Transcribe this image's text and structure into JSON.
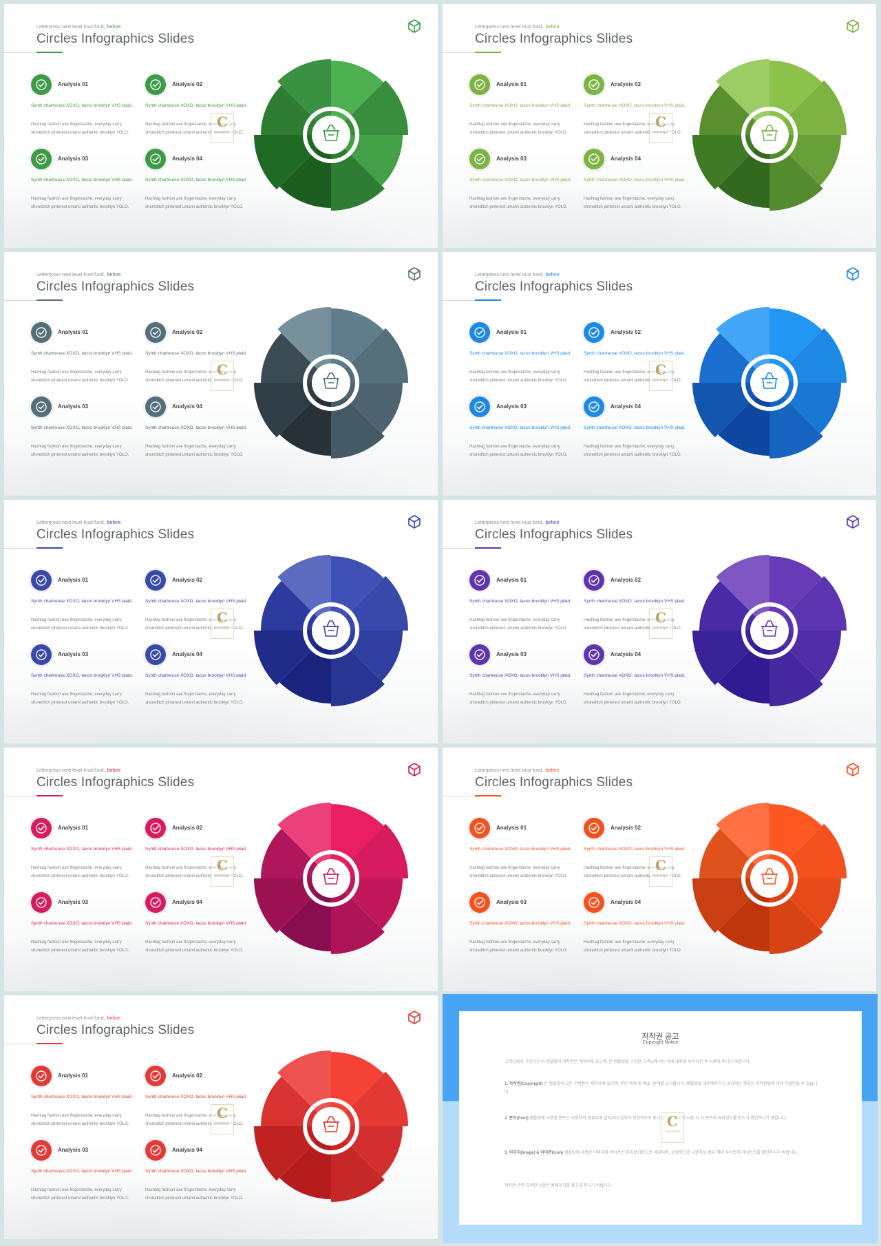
{
  "slides": [
    {
      "theme": "green",
      "supertitle": "Letterpress next level trust fund,",
      "supertitle_highlight": "before",
      "title": "Circles Infographics Slides",
      "accent": "#3d9b45",
      "wheel_colors": [
        "#4caf50",
        "#388e3c",
        "#43a047",
        "#2e7d32",
        "#1b5e20",
        "#1f6b25",
        "#2e7d32",
        "#3b9142"
      ],
      "icon": "box-cube-icon",
      "items": [
        {
          "label": "Analysis 01",
          "accent_text": "Synth chartreuse XOXO, tacos brooklyn VHS plaid.",
          "body_text": "Hashtag fashion axe fingerstache, everyday carry shoreditch pinterest umami authentic brooklyn YOLO."
        },
        {
          "label": "Analysis 02",
          "accent_text": "Synth chartreuse XOXO, tacos brooklyn VHS plaid.",
          "body_text": "Hashtag fashion axe fingerstache, everyday carry shoreditch pinterest umami authentic brooklyn YOLO."
        },
        {
          "label": "Analysis 03",
          "accent_text": "Synth chartreuse XOXO, tacos brooklyn VHS plaid.",
          "body_text": "Hashtag fashion axe fingerstache, everyday carry shoreditch pinterest umami authentic brooklyn YOLO."
        },
        {
          "label": "Analysis 04",
          "accent_text": "Synth chartreuse XOXO, tacos brooklyn VHS plaid.",
          "body_text": "Hashtag fashion axe fingerstache, everyday carry shoreditch pinterest umami authentic brooklyn YOLO."
        }
      ]
    },
    {
      "theme": "lime",
      "supertitle": "Letterpress next level trust fund,",
      "supertitle_highlight": "before",
      "title": "Circles Infographics Slides",
      "accent": "#7cb342",
      "wheel_colors": [
        "#8bc34a",
        "#7cb342",
        "#689f38",
        "#558b2f",
        "#33691e",
        "#3f7a24",
        "#5a8f30",
        "#9ccc65"
      ],
      "icon": "box-cube-icon",
      "items": [
        {
          "label": "Analysis 01",
          "accent_text": "Synth chartreuse XOXO, tacos brooklyn VHS plaid.",
          "body_text": "Hashtag fashion axe fingerstache, everyday carry shoreditch pinterest umami authentic brooklyn YOLO."
        },
        {
          "label": "Analysis 02",
          "accent_text": "Synth chartreuse XOXO, tacos brooklyn VHS plaid.",
          "body_text": "Hashtag fashion axe fingerstache, everyday carry shoreditch pinterest umami authentic brooklyn YOLO."
        },
        {
          "label": "Analysis 03",
          "accent_text": "Synth chartreuse XOXO, tacos brooklyn VHS plaid.",
          "body_text": "Hashtag fashion axe fingerstache, everyday carry shoreditch pinterest umami authentic brooklyn YOLO."
        },
        {
          "label": "Analysis 04",
          "accent_text": "Synth chartreuse XOXO, tacos brooklyn VHS plaid.",
          "body_text": "Hashtag fashion axe fingerstache, everyday carry shoreditch pinterest umami authentic brooklyn YOLO."
        }
      ]
    },
    {
      "theme": "slate",
      "supertitle": "Letterpress next level trust fund,",
      "supertitle_highlight": "before",
      "title": "Circles Infographics Slides",
      "accent": "#546e7a",
      "wheel_colors": [
        "#607d8b",
        "#546e7a",
        "#4f6470",
        "#455a64",
        "#263238",
        "#2f3e46",
        "#3a4b54",
        "#78909c"
      ],
      "icon": "box-cube-icon",
      "items": [
        {
          "label": "Analysis 01",
          "accent_text": "Synth chartreuse XOXO, tacos brooklyn VHS plaid.",
          "body_text": "Hashtag fashion axe fingerstache, everyday carry shoreditch pinterest umami authentic brooklyn YOLO."
        },
        {
          "label": "Analysis 02",
          "accent_text": "Synth chartreuse XOXO, tacos brooklyn VHS plaid.",
          "body_text": "Hashtag fashion axe fingerstache, everyday carry shoreditch pinterest umami authentic brooklyn YOLO."
        },
        {
          "label": "Analysis 03",
          "accent_text": "Synth chartreuse XOXO, tacos brooklyn VHS plaid.",
          "body_text": "Hashtag fashion axe fingerstache, everyday carry shoreditch pinterest umami authentic brooklyn YOLO."
        },
        {
          "label": "Analysis 04",
          "accent_text": "Synth chartreuse XOXO, tacos brooklyn VHS plaid.",
          "body_text": "Hashtag fashion axe fingerstache, everyday carry shoreditch pinterest umami authentic brooklyn YOLO."
        }
      ]
    },
    {
      "theme": "blue",
      "supertitle": "Letterpress next level trust fund,",
      "supertitle_highlight": "before",
      "title": "Circles Infographics Slides",
      "accent": "#1e88e5",
      "wheel_colors": [
        "#2196f3",
        "#1e88e5",
        "#1976d2",
        "#1565c0",
        "#0d47a1",
        "#1256b0",
        "#1a6fd0",
        "#42a5f5"
      ],
      "icon": "box-cube-icon",
      "items": [
        {
          "label": "Analysis 01",
          "accent_text": "Synth chartreuse XOXO, tacos brooklyn VHS plaid.",
          "body_text": "Hashtag fashion axe fingerstache, everyday carry shoreditch pinterest umami authentic brooklyn YOLO."
        },
        {
          "label": "Analysis 02",
          "accent_text": "Synth chartreuse XOXO, tacos brooklyn VHS plaid.",
          "body_text": "Hashtag fashion axe fingerstache, everyday carry shoreditch pinterest umami authentic brooklyn YOLO."
        },
        {
          "label": "Analysis 03",
          "accent_text": "Synth chartreuse XOXO, tacos brooklyn VHS plaid.",
          "body_text": "Hashtag fashion axe fingerstache, everyday carry shoreditch pinterest umami authentic brooklyn YOLO."
        },
        {
          "label": "Analysis 04",
          "accent_text": "Synth chartreuse XOXO, tacos brooklyn VHS plaid.",
          "body_text": "Hashtag fashion axe fingerstache, everyday carry shoreditch pinterest umami authentic brooklyn YOLO."
        }
      ]
    },
    {
      "theme": "indigo",
      "supertitle": "Letterpress next level trust fund,",
      "supertitle_highlight": "before",
      "title": "Circles Infographics Slides",
      "accent": "#3949ab",
      "wheel_colors": [
        "#3f51b5",
        "#3949ab",
        "#303f9f",
        "#283593",
        "#1a237e",
        "#202b8a",
        "#2d3a9e",
        "#5c6bc0"
      ],
      "icon": "box-cube-icon",
      "items": [
        {
          "label": "Analysis 01",
          "accent_text": "Synth chartreuse XOXO, tacos brooklyn VHS plaid.",
          "body_text": "Hashtag fashion axe fingerstache, everyday carry shoreditch pinterest umami authentic brooklyn YOLO."
        },
        {
          "label": "Analysis 02",
          "accent_text": "Synth chartreuse XOXO, tacos brooklyn VHS plaid.",
          "body_text": "Hashtag fashion axe fingerstache, everyday carry shoreditch pinterest umami authentic brooklyn YOLO."
        },
        {
          "label": "Analysis 03",
          "accent_text": "Synth chartreuse XOXO, tacos brooklyn VHS plaid.",
          "body_text": "Hashtag fashion axe fingerstache, everyday carry shoreditch pinterest umami authentic brooklyn YOLO."
        },
        {
          "label": "Analysis 04",
          "accent_text": "Synth chartreuse XOXO, tacos brooklyn VHS plaid.",
          "body_text": "Hashtag fashion axe fingerstache, everyday carry shoreditch pinterest umami authentic brooklyn YOLO."
        }
      ]
    },
    {
      "theme": "purple",
      "supertitle": "Letterpress next level trust fund,",
      "supertitle_highlight": "before",
      "title": "Circles Infographics Slides",
      "accent": "#5e35b1",
      "wheel_colors": [
        "#673ab7",
        "#5e35b1",
        "#512da8",
        "#4527a0",
        "#311b92",
        "#3a2299",
        "#4a2ba5",
        "#7e57c2"
      ],
      "icon": "box-cube-icon",
      "items": [
        {
          "label": "Analysis 01",
          "accent_text": "Synth chartreuse XOXO, tacos brooklyn VHS plaid.",
          "body_text": "Hashtag fashion axe fingerstache, everyday carry shoreditch pinterest umami authentic brooklyn YOLO."
        },
        {
          "label": "Analysis 02",
          "accent_text": "Synth chartreuse XOXO, tacos brooklyn VHS plaid.",
          "body_text": "Hashtag fashion axe fingerstache, everyday carry shoreditch pinterest umami authentic brooklyn YOLO."
        },
        {
          "label": "Analysis 03",
          "accent_text": "Synth chartreuse XOXO, tacos brooklyn VHS plaid.",
          "body_text": "Hashtag fashion axe fingerstache, everyday carry shoreditch pinterest umami authentic brooklyn YOLO."
        },
        {
          "label": "Analysis 04",
          "accent_text": "Synth chartreuse XOXO, tacos brooklyn VHS plaid.",
          "body_text": "Hashtag fashion axe fingerstache, everyday carry shoreditch pinterest umami authentic brooklyn YOLO."
        }
      ]
    },
    {
      "theme": "pink",
      "supertitle": "Letterpress next level trust fund,",
      "supertitle_highlight": "before",
      "title": "Circles Infographics Slides",
      "accent": "#d81b60",
      "wheel_colors": [
        "#e91e63",
        "#d81b60",
        "#c2185b",
        "#ad1457",
        "#880e4f",
        "#9b1152",
        "#b0165b",
        "#ec407a"
      ],
      "icon": "box-cube-icon",
      "items": [
        {
          "label": "Analysis 01",
          "accent_text": "Synth chartreuse XOXO, tacos brooklyn VHS plaid.",
          "body_text": "Hashtag fashion axe fingerstache, everyday carry shoreditch pinterest umami authentic brooklyn YOLO."
        },
        {
          "label": "Analysis 02",
          "accent_text": "Synth chartreuse XOXO, tacos brooklyn VHS plaid.",
          "body_text": "Hashtag fashion axe fingerstache, everyday carry shoreditch pinterest umami authentic brooklyn YOLO."
        },
        {
          "label": "Analysis 03",
          "accent_text": "Synth chartreuse XOXO, tacos brooklyn VHS plaid.",
          "body_text": "Hashtag fashion axe fingerstache, everyday carry shoreditch pinterest umami authentic brooklyn YOLO."
        },
        {
          "label": "Analysis 04",
          "accent_text": "Synth chartreuse XOXO, tacos brooklyn VHS plaid.",
          "body_text": "Hashtag fashion axe fingerstache, everyday carry shoreditch pinterest umami authentic brooklyn YOLO."
        }
      ]
    },
    {
      "theme": "orange",
      "supertitle": "Letterpress next level trust fund,",
      "supertitle_highlight": "before",
      "title": "Circles Infographics Slides",
      "accent": "#f4511e",
      "wheel_colors": [
        "#ff5722",
        "#f4511e",
        "#e64a19",
        "#d84315",
        "#bf360c",
        "#c93e12",
        "#e0521c",
        "#ff7043"
      ],
      "icon": "box-cube-icon",
      "items": [
        {
          "label": "Analysis 01",
          "accent_text": "Synth chartreuse XOXO, tacos brooklyn VHS plaid.",
          "body_text": "Hashtag fashion axe fingerstache, everyday carry shoreditch pinterest umami authentic brooklyn YOLO."
        },
        {
          "label": "Analysis 02",
          "accent_text": "Synth chartreuse XOXO, tacos brooklyn VHS plaid.",
          "body_text": "Hashtag fashion axe fingerstache, everyday carry shoreditch pinterest umami authentic brooklyn YOLO."
        },
        {
          "label": "Analysis 03",
          "accent_text": "Synth chartreuse XOXO, tacos brooklyn VHS plaid.",
          "body_text": "Hashtag fashion axe fingerstache, everyday carry shoreditch pinterest umami authentic brooklyn YOLO."
        },
        {
          "label": "Analysis 04",
          "accent_text": "Synth chartreuse XOXO, tacos brooklyn VHS plaid.",
          "body_text": "Hashtag fashion axe fingerstache, everyday carry shoreditch pinterest umami authentic brooklyn YOLO."
        }
      ]
    },
    {
      "theme": "red",
      "supertitle": "Letterpress next level trust fund,",
      "supertitle_highlight": "before",
      "title": "Circles Infographics Slides",
      "accent": "#e53935",
      "wheel_colors": [
        "#f44336",
        "#e53935",
        "#d32f2f",
        "#c62828",
        "#b71c1c",
        "#c02222",
        "#d83330",
        "#ef5350"
      ],
      "icon": "box-cube-icon",
      "items": [
        {
          "label": "Analysis 01",
          "accent_text": "Synth chartreuse XOXO, tacos brooklyn VHS plaid.",
          "body_text": "Hashtag fashion axe fingerstache, everyday carry shoreditch pinterest umami authentic brooklyn YOLO."
        },
        {
          "label": "Analysis 02",
          "accent_text": "Synth chartreuse XOXO, tacos brooklyn VHS plaid.",
          "body_text": "Hashtag fashion axe fingerstache, everyday carry shoreditch pinterest umami authentic brooklyn YOLO."
        },
        {
          "label": "Analysis 03",
          "accent_text": "Synth chartreuse XOXO, tacos brooklyn VHS plaid.",
          "body_text": "Hashtag fashion axe fingerstache, everyday carry shoreditch pinterest umami authentic brooklyn YOLO."
        },
        {
          "label": "Analysis 04",
          "accent_text": "Synth chartreuse XOXO, tacos brooklyn VHS plaid.",
          "body_text": "Hashtag fashion axe fingerstache, everyday carry shoreditch pinterest umami authentic brooklyn YOLO."
        }
      ]
    }
  ],
  "badge_icon": "check-circle-icon",
  "center_icon": "basket-icon",
  "watermark": {
    "letter": "C",
    "word": "CONTENTS"
  },
  "notice": {
    "title": "저작권 공고",
    "subtitle": "Copyright Notice",
    "paragraphs": [
      {
        "heading": "",
        "text": "고객님께서 구입하신 이 템플릿의 저작권은 제작사에 있으며, 본 템플릿을 구입한 고객님께서는 아래 내용을 숙지하신 후 사용해 주시기 바랍니다."
      },
      {
        "heading": "1. 저작권(Copyright)",
        "text": "본 템플릿의 모든 저작권은 제작사에 있으며, 무단 복제 및 배포, 판매를 금지합니다. 템플릿을 재판매하거나 공유하는 행위는 저작권법에 의해 처벌받을 수 있습니다."
      },
      {
        "heading": "2. 폰트(Font)",
        "text": "템플릿에 사용된 폰트는 사용자의 컴퓨터에 설치되어 있어야 정상적으로 표시됩니다. 상업적 사용 시 각 폰트의 라이선스를 반드시 확인하시기 바랍니다."
      },
      {
        "heading": "3. 이미지(Image) & 아이콘(Icon)",
        "text": "템플릿에 사용된 이미지와 아이콘은 미리보기용으로 제공되며, 상업적으로 사용하실 경우 해당 사이트의 라이선스를 확인하시기 바랍니다."
      },
      {
        "heading": "",
        "text": "저작권 관련 자세한 사항은 홈페이지를 참고해 주시기 바랍니다."
      }
    ]
  }
}
